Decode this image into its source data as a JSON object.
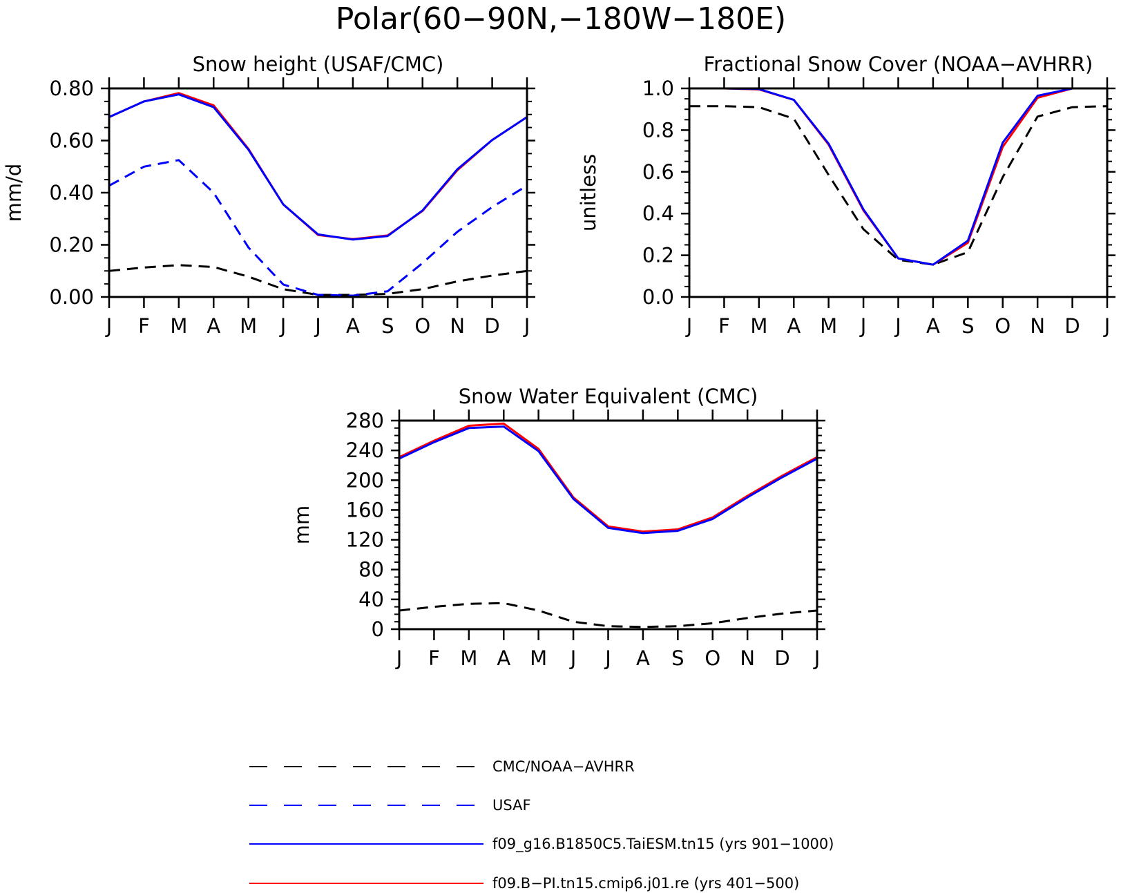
{
  "figure": {
    "main_title": "Polar(60−90N,−180W−180E)"
  },
  "colors": {
    "obs": "#000000",
    "usaf": "#0000ff",
    "model1": "#0000ff",
    "model2": "#ff0000"
  },
  "chart_data": [
    {
      "id": "snow_height",
      "type": "line",
      "title": "Snow height (USAF/CMC)",
      "ylabel": "mm/d",
      "xlabel": "",
      "categories": [
        "J",
        "F",
        "M",
        "A",
        "M",
        "J",
        "J",
        "A",
        "S",
        "O",
        "N",
        "D",
        "J"
      ],
      "ylim": [
        0,
        0.8
      ],
      "yticks": [
        "0.00",
        "0.20",
        "0.40",
        "0.60",
        "0.80"
      ],
      "series": [
        {
          "name": "CMC/NOAA−AVHRR",
          "style": "dashed",
          "color": "#000000",
          "values": [
            0.1,
            0.113,
            0.122,
            0.115,
            0.078,
            0.03,
            0.008,
            0.008,
            0.012,
            0.03,
            0.06,
            0.082,
            0.1
          ]
        },
        {
          "name": "USAF",
          "style": "dashed",
          "color": "#0000ff",
          "values": [
            0.427,
            0.5,
            0.525,
            0.4,
            0.19,
            0.048,
            0.008,
            0.005,
            0.022,
            0.13,
            0.25,
            0.345,
            0.427
          ]
        },
        {
          "name": "f09.B−PI.tn15.cmip6.j01.re (yrs 401−500)",
          "style": "solid",
          "color": "#ff0000",
          "values": [
            0.69,
            0.75,
            0.782,
            0.735,
            0.568,
            0.355,
            0.238,
            0.222,
            0.236,
            0.33,
            0.486,
            0.602,
            0.69
          ]
        },
        {
          "name": "f09_g16.B1850C5.TaiESM.tn15 (yrs 901−1000)",
          "style": "solid",
          "color": "#0000ff",
          "values": [
            0.69,
            0.75,
            0.777,
            0.728,
            0.565,
            0.355,
            0.24,
            0.22,
            0.234,
            0.332,
            0.49,
            0.602,
            0.69
          ]
        }
      ]
    },
    {
      "id": "snow_cover",
      "type": "line",
      "title": "Fractional Snow Cover (NOAA−AVHRR)",
      "ylabel": "unitless",
      "xlabel": "",
      "categories": [
        "J",
        "F",
        "M",
        "A",
        "M",
        "J",
        "J",
        "A",
        "S",
        "O",
        "N",
        "D",
        "J"
      ],
      "ylim": [
        0,
        1.0
      ],
      "yticks": [
        "0.0",
        "0.2",
        "0.4",
        "0.6",
        "0.8",
        "1.0"
      ],
      "series": [
        {
          "name": "CMC/NOAA−AVHRR",
          "style": "dashed",
          "color": "#000000",
          "values": [
            0.915,
            0.915,
            0.91,
            0.855,
            0.585,
            0.325,
            0.178,
            0.155,
            0.215,
            0.575,
            0.865,
            0.91,
            0.915
          ]
        },
        {
          "name": "f09.B−PI.tn15.cmip6.j01.re (yrs 401−500)",
          "style": "solid",
          "color": "#ff0000",
          "values": [
            1.0,
            1.0,
            0.995,
            0.945,
            0.73,
            0.415,
            0.185,
            0.155,
            0.26,
            0.72,
            0.955,
            1.0,
            1.0
          ]
        },
        {
          "name": "f09_g16.B1850C5.TaiESM.tn15 (yrs 901−1000)",
          "style": "solid",
          "color": "#0000ff",
          "values": [
            1.0,
            1.0,
            0.997,
            0.945,
            0.735,
            0.42,
            0.185,
            0.155,
            0.27,
            0.74,
            0.965,
            1.0,
            1.0
          ]
        }
      ]
    },
    {
      "id": "snow_water_equivalent",
      "type": "line",
      "title": "Snow Water Equivalent (CMC)",
      "ylabel": "mm",
      "xlabel": "",
      "categories": [
        "J",
        "F",
        "M",
        "A",
        "M",
        "J",
        "J",
        "A",
        "S",
        "O",
        "N",
        "D",
        "J"
      ],
      "ylim": [
        0,
        280
      ],
      "yticks": [
        "0",
        "40",
        "80",
        "120",
        "160",
        "200",
        "240",
        "280"
      ],
      "series": [
        {
          "name": "CMC/NOAA−AVHRR",
          "style": "dashed",
          "color": "#000000",
          "values": [
            25,
            30,
            34,
            35,
            25,
            10,
            4,
            3,
            4,
            8,
            15,
            21,
            25
          ]
        },
        {
          "name": "f09.B−PI.tn15.cmip6.j01.re (yrs 401−500)",
          "style": "solid",
          "color": "#ff0000",
          "values": [
            231,
            253,
            273,
            276,
            242,
            177,
            138,
            131,
            134,
            150,
            179,
            206,
            231
          ]
        },
        {
          "name": "f09_g16.B1850C5.TaiESM.tn15 (yrs 901−1000)",
          "style": "solid",
          "color": "#0000ff",
          "values": [
            229,
            251,
            270,
            272,
            239,
            175,
            136,
            129,
            132,
            148,
            177,
            204,
            229
          ]
        }
      ]
    }
  ],
  "legend": [
    {
      "label": "CMC/NOAA−AVHRR",
      "style": "dashed",
      "color": "#000000"
    },
    {
      "label": "USAF",
      "style": "dashed",
      "color": "#0000ff"
    },
    {
      "label": "f09_g16.B1850C5.TaiESM.tn15 (yrs 901−1000)",
      "style": "solid",
      "color": "#0000ff"
    },
    {
      "label": "f09.B−PI.tn15.cmip6.j01.re (yrs 401−500)",
      "style": "solid",
      "color": "#ff0000"
    }
  ]
}
